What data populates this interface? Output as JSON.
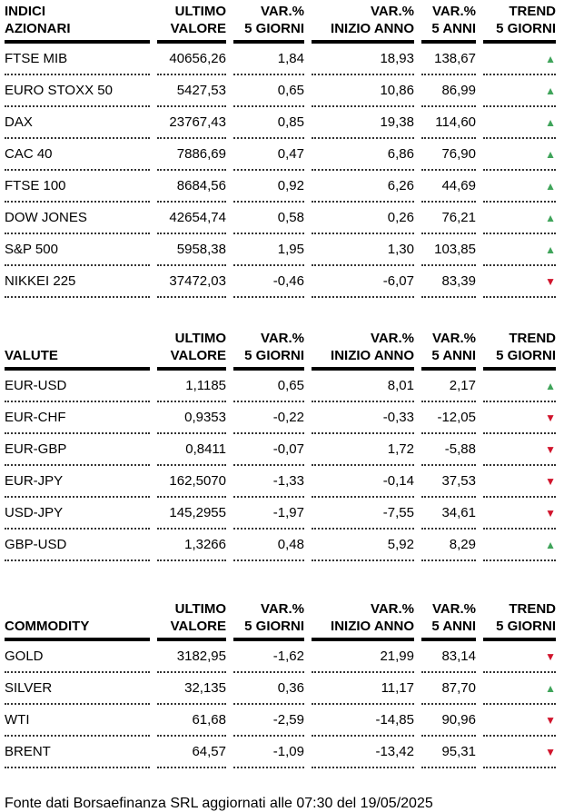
{
  "footer": "Fonte dati Borsaefinanza SRL aggiornati alle 07:30 del 19/05/2025",
  "trend_icons": {
    "up": "▲",
    "down": "▼"
  },
  "colors": {
    "up_green": "#3fa45a",
    "down_red": "#d1142c",
    "header_rule": "#000000"
  },
  "chart_data": [
    {
      "type": "table",
      "title_line1": "INDICI",
      "title_line2": "AZIONARI",
      "col_headers": [
        [
          "ULTIMO",
          "VALORE"
        ],
        [
          "VAR.%",
          "5 GIORNI"
        ],
        [
          "VAR.%",
          "INIZIO ANNO"
        ],
        [
          "VAR.%",
          "5 ANNI"
        ],
        [
          "TREND",
          "5 GIORNI"
        ]
      ],
      "rows": [
        {
          "label": "FTSE MIB",
          "ultimo_valore": "40656,26",
          "var_pct_5_giorni": "1,84",
          "var_pct_inizio_anno": "18,93",
          "var_pct_5_anni": "138,67",
          "trend": "up"
        },
        {
          "label": "EURO STOXX 50",
          "ultimo_valore": "5427,53",
          "var_pct_5_giorni": "0,65",
          "var_pct_inizio_anno": "10,86",
          "var_pct_5_anni": "86,99",
          "trend": "up"
        },
        {
          "label": "DAX",
          "ultimo_valore": "23767,43",
          "var_pct_5_giorni": "0,85",
          "var_pct_inizio_anno": "19,38",
          "var_pct_5_anni": "114,60",
          "trend": "up"
        },
        {
          "label": "CAC 40",
          "ultimo_valore": "7886,69",
          "var_pct_5_giorni": "0,47",
          "var_pct_inizio_anno": "6,86",
          "var_pct_5_anni": "76,90",
          "trend": "up"
        },
        {
          "label": "FTSE 100",
          "ultimo_valore": "8684,56",
          "var_pct_5_giorni": "0,92",
          "var_pct_inizio_anno": "6,26",
          "var_pct_5_anni": "44,69",
          "trend": "up"
        },
        {
          "label": "DOW JONES",
          "ultimo_valore": "42654,74",
          "var_pct_5_giorni": "0,58",
          "var_pct_inizio_anno": "0,26",
          "var_pct_5_anni": "76,21",
          "trend": "up"
        },
        {
          "label": "S&P 500",
          "ultimo_valore": "5958,38",
          "var_pct_5_giorni": "1,95",
          "var_pct_inizio_anno": "1,30",
          "var_pct_5_anni": "103,85",
          "trend": "up"
        },
        {
          "label": "NIKKEI 225",
          "ultimo_valore": "37472,03",
          "var_pct_5_giorni": "-0,46",
          "var_pct_inizio_anno": "-6,07",
          "var_pct_5_anni": "83,39",
          "trend": "down"
        }
      ]
    },
    {
      "type": "table",
      "title_line1": "",
      "title_line2": "VALUTE",
      "col_headers": [
        [
          "ULTIMO",
          "VALORE"
        ],
        [
          "VAR.%",
          "5 GIORNI"
        ],
        [
          "VAR.%",
          "INIZIO ANNO"
        ],
        [
          "VAR.%",
          "5 ANNI"
        ],
        [
          "TREND",
          "5 GIORNI"
        ]
      ],
      "rows": [
        {
          "label": "EUR-USD",
          "ultimo_valore": "1,1185",
          "var_pct_5_giorni": "0,65",
          "var_pct_inizio_anno": "8,01",
          "var_pct_5_anni": "2,17",
          "trend": "up"
        },
        {
          "label": "EUR-CHF",
          "ultimo_valore": "0,9353",
          "var_pct_5_giorni": "-0,22",
          "var_pct_inizio_anno": "-0,33",
          "var_pct_5_anni": "-12,05",
          "trend": "down"
        },
        {
          "label": "EUR-GBP",
          "ultimo_valore": "0,8411",
          "var_pct_5_giorni": "-0,07",
          "var_pct_inizio_anno": "1,72",
          "var_pct_5_anni": "-5,88",
          "trend": "down"
        },
        {
          "label": "EUR-JPY",
          "ultimo_valore": "162,5070",
          "var_pct_5_giorni": "-1,33",
          "var_pct_inizio_anno": "-0,14",
          "var_pct_5_anni": "37,53",
          "trend": "down"
        },
        {
          "label": "USD-JPY",
          "ultimo_valore": "145,2955",
          "var_pct_5_giorni": "-1,97",
          "var_pct_inizio_anno": "-7,55",
          "var_pct_5_anni": "34,61",
          "trend": "down"
        },
        {
          "label": "GBP-USD",
          "ultimo_valore": "1,3266",
          "var_pct_5_giorni": "0,48",
          "var_pct_inizio_anno": "5,92",
          "var_pct_5_anni": "8,29",
          "trend": "up"
        }
      ]
    },
    {
      "type": "table",
      "title_line1": "",
      "title_line2": "COMMODITY",
      "col_headers": [
        [
          "ULTIMO",
          "VALORE"
        ],
        [
          "VAR.%",
          "5 GIORNI"
        ],
        [
          "VAR.%",
          "INIZIO ANNO"
        ],
        [
          "VAR.%",
          "5 ANNI"
        ],
        [
          "TREND",
          "5 GIORNI"
        ]
      ],
      "rows": [
        {
          "label": "GOLD",
          "ultimo_valore": "3182,95",
          "var_pct_5_giorni": "-1,62",
          "var_pct_inizio_anno": "21,99",
          "var_pct_5_anni": "83,14",
          "trend": "down"
        },
        {
          "label": "SILVER",
          "ultimo_valore": "32,135",
          "var_pct_5_giorni": "0,36",
          "var_pct_inizio_anno": "11,17",
          "var_pct_5_anni": "87,70",
          "trend": "up"
        },
        {
          "label": "WTI",
          "ultimo_valore": "61,68",
          "var_pct_5_giorni": "-2,59",
          "var_pct_inizio_anno": "-14,85",
          "var_pct_5_anni": "90,96",
          "trend": "down"
        },
        {
          "label": "BRENT",
          "ultimo_valore": "64,57",
          "var_pct_5_giorni": "-1,09",
          "var_pct_inizio_anno": "-13,42",
          "var_pct_5_anni": "95,31",
          "trend": "down"
        }
      ]
    }
  ]
}
